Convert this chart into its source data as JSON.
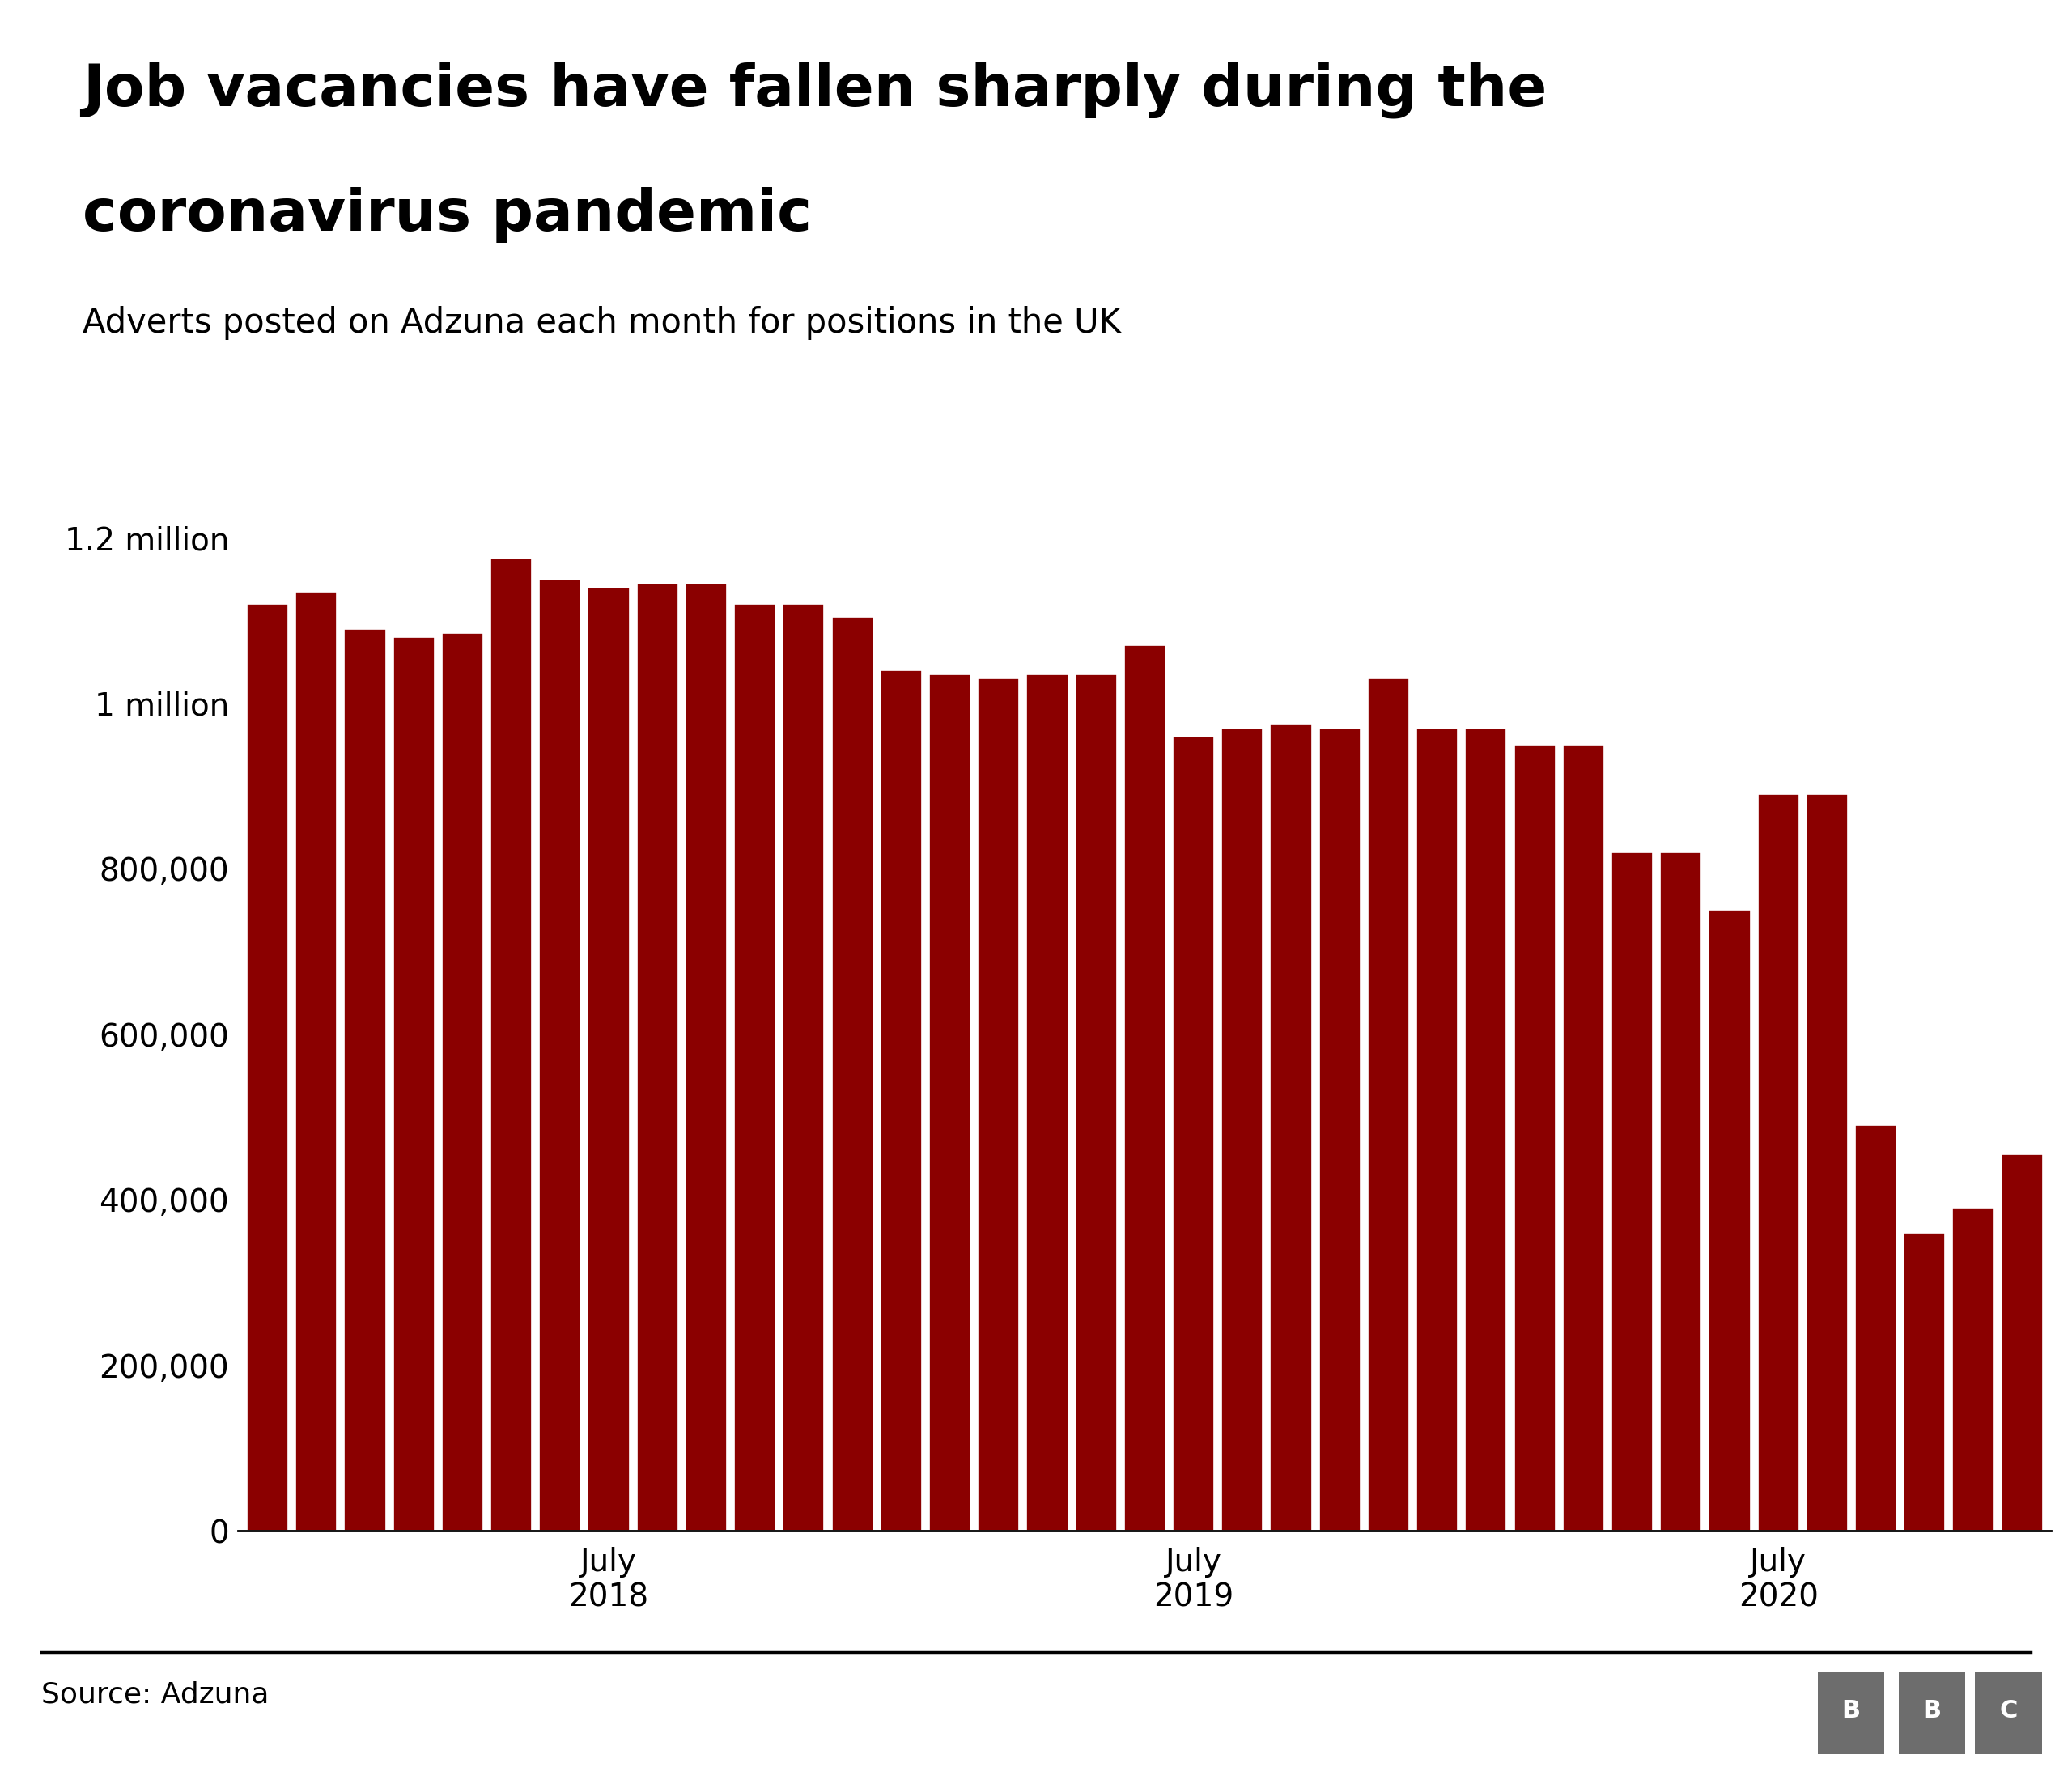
{
  "title_line1": "Job vacancies have fallen sharply during the",
  "title_line2": "coronavirus pandemic",
  "subtitle": "Adverts posted on Adzuna each month for positions in the UK",
  "source": "Source: Adzuna",
  "bar_color": "#8B0000",
  "background_color": "#ffffff",
  "ytick_labels": [
    "0",
    "200,000",
    "400,000",
    "600,000",
    "800,000",
    "1 million",
    "1.2 million"
  ],
  "ytick_values": [
    0,
    200000,
    400000,
    600000,
    800000,
    1000000,
    1200000
  ],
  "ylim": [
    0,
    1280000
  ],
  "values": [
    1120000,
    1135000,
    1090000,
    1080000,
    1085000,
    1175000,
    1150000,
    1140000,
    1145000,
    1145000,
    1120000,
    1120000,
    1105000,
    1040000,
    1035000,
    1030000,
    1035000,
    1035000,
    1070000,
    960000,
    970000,
    975000,
    970000,
    1030000,
    970000,
    970000,
    950000,
    950000,
    820000,
    820000,
    750000,
    890000,
    890000,
    490000,
    360000,
    390000,
    455000
  ],
  "n_bars": 37,
  "july2018_bar_index": 7,
  "july2019_bar_index": 19,
  "july2020_bar_index": 31,
  "title_fontsize": 52,
  "subtitle_fontsize": 30,
  "tick_fontsize": 28,
  "source_fontsize": 26,
  "bbc_fontsize": 22
}
